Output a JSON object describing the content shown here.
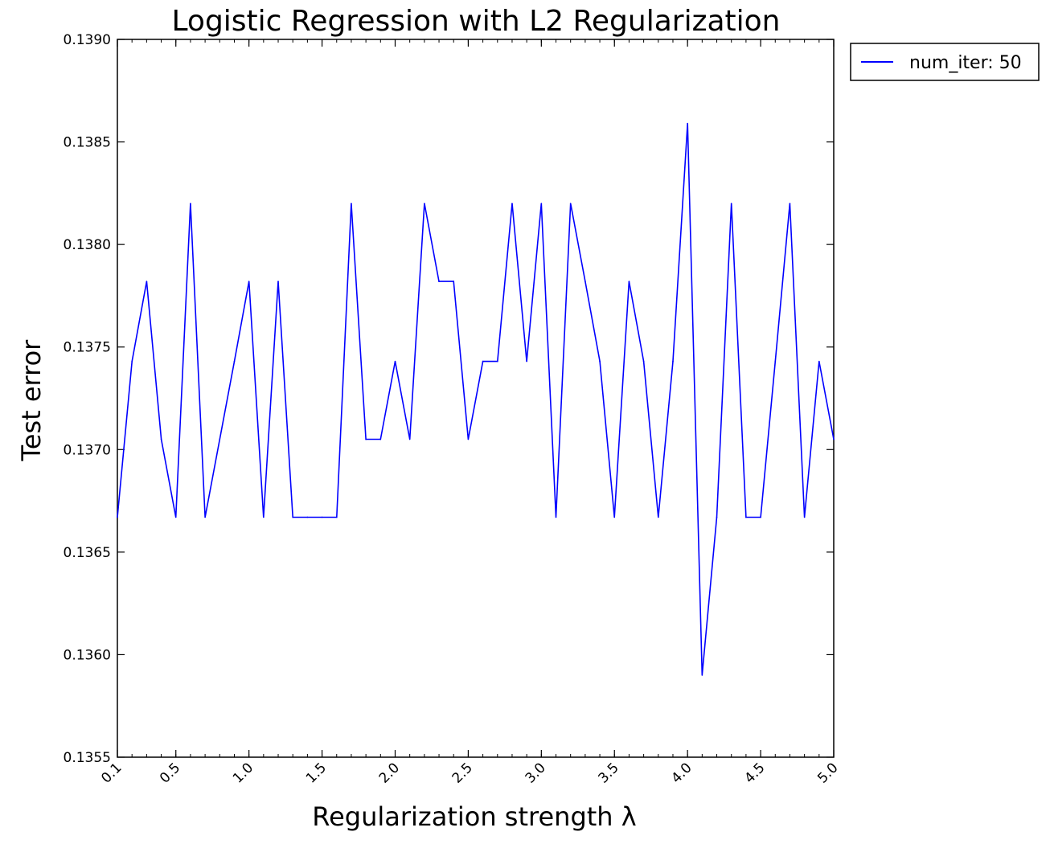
{
  "chart_data": {
    "type": "line",
    "title": "Logistic Regression with L2 Regularization",
    "xlabel": "Regularization strength λ",
    "ylabel": "Test error",
    "xlim": [
      0.1,
      5.0
    ],
    "ylim": [
      0.1355,
      0.139
    ],
    "x_ticks": [
      "0.1",
      "0.5",
      "1.0",
      "1.5",
      "2.0",
      "2.5",
      "3.0",
      "3.5",
      "4.0",
      "4.5",
      "5.0"
    ],
    "x_tick_values": [
      0.1,
      0.5,
      1.0,
      1.5,
      2.0,
      2.5,
      3.0,
      3.5,
      4.0,
      4.5,
      5.0
    ],
    "y_ticks": [
      "0.1355",
      "0.1360",
      "0.1365",
      "0.1370",
      "0.1375",
      "0.1380",
      "0.1385",
      "0.1390"
    ],
    "y_tick_values": [
      0.1355,
      0.136,
      0.1365,
      0.137,
      0.1375,
      0.138,
      0.1385,
      0.139
    ],
    "grid": false,
    "legend": "outside-top-right",
    "series": [
      {
        "name": "num_iter: 50",
        "color": "#0000ff",
        "x": [
          0.1,
          0.2,
          0.3,
          0.4,
          0.5,
          0.6,
          0.7,
          0.8,
          0.9,
          1.0,
          1.1,
          1.2,
          1.3,
          1.4,
          1.5,
          1.6,
          1.7,
          1.8,
          1.9,
          2.0,
          2.1,
          2.2,
          2.3,
          2.4,
          2.5,
          2.6,
          2.7,
          2.8,
          2.9,
          3.0,
          3.1,
          3.2,
          3.3,
          3.4,
          3.5,
          3.6,
          3.7,
          3.8,
          3.9,
          4.0,
          4.1,
          4.2,
          4.3,
          4.4,
          4.5,
          4.6,
          4.7,
          4.8,
          4.9,
          5.0
        ],
        "values": [
          0.13667,
          0.13743,
          0.13782,
          0.13705,
          0.13667,
          0.1382,
          0.13667,
          0.13705,
          0.13743,
          0.13782,
          0.13667,
          0.13782,
          0.13667,
          0.13667,
          0.13667,
          0.13667,
          0.1382,
          0.13705,
          0.13705,
          0.13743,
          0.13705,
          0.1382,
          0.13782,
          0.13782,
          0.13705,
          0.13743,
          0.13743,
          0.1382,
          0.13743,
          0.1382,
          0.13667,
          0.1382,
          0.13782,
          0.13743,
          0.13667,
          0.13782,
          0.13743,
          0.13667,
          0.13743,
          0.13859,
          0.1359,
          0.13667,
          0.1382,
          0.13667,
          0.13667,
          0.13743,
          0.1382,
          0.13667,
          0.13743,
          0.13705
        ]
      }
    ]
  }
}
